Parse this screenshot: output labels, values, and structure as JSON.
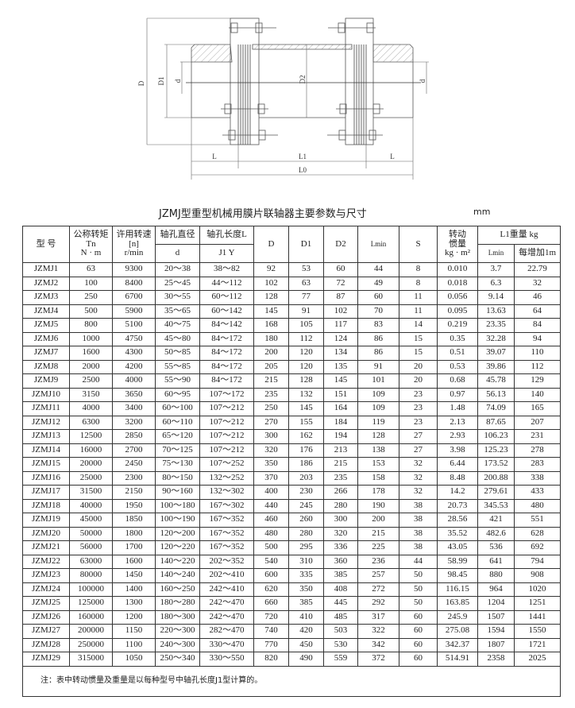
{
  "drawing": {
    "labels": {
      "D": "D",
      "D1": "D1",
      "D2": "D2",
      "d_left": "d",
      "d_right": "d",
      "L_left": "L",
      "L1": "L1",
      "L_right": "L",
      "L0": "L0"
    }
  },
  "title": "JZMJ型重型机械用膜片联轴器主要参数与尺寸",
  "unit": "mm",
  "table": {
    "headers": {
      "model": "型 号",
      "torque": [
        "公称转矩",
        "Tn",
        "N · m"
      ],
      "speed": [
        "许用转速",
        "[n]",
        "r/min"
      ],
      "bore_diameter": "轴孔直径",
      "bore_diameter_sub": "d",
      "bore_length": "轴孔长度L",
      "bore_length_sub": "J1  Y",
      "D": "D",
      "D1": "D1",
      "D2": "D2",
      "Lmin": "Lmin",
      "S": "S",
      "inertia": [
        "转动",
        "惯量",
        "kg · m²"
      ],
      "weight": "L1重量 kg",
      "weight_lmin": "Lmin",
      "weight_per_m": "每增加1m"
    },
    "rows": [
      [
        "JZMJ1",
        "63",
        "9300",
        "20～38",
        "38～82",
        "92",
        "53",
        "60",
        "44",
        "8",
        "0.010",
        "3.7",
        "22.79"
      ],
      [
        "JZMJ2",
        "100",
        "8400",
        "25～45",
        "44～112",
        "102",
        "63",
        "72",
        "49",
        "8",
        "0.018",
        "6.3",
        "32"
      ],
      [
        "JZMJ3",
        "250",
        "6700",
        "30～55",
        "60～112",
        "128",
        "77",
        "87",
        "60",
        "11",
        "0.056",
        "9.14",
        "46"
      ],
      [
        "JZMJ4",
        "500",
        "5900",
        "35～65",
        "60～142",
        "145",
        "91",
        "102",
        "70",
        "11",
        "0.095",
        "13.63",
        "64"
      ],
      [
        "JZMJ5",
        "800",
        "5100",
        "40～75",
        "84～142",
        "168",
        "105",
        "117",
        "83",
        "14",
        "0.219",
        "23.35",
        "84"
      ],
      [
        "JZMJ6",
        "1000",
        "4750",
        "45～80",
        "84～172",
        "180",
        "112",
        "124",
        "86",
        "15",
        "0.35",
        "32.28",
        "94"
      ],
      [
        "JZMJ7",
        "1600",
        "4300",
        "50～85",
        "84～172",
        "200",
        "120",
        "134",
        "86",
        "15",
        "0.51",
        "39.07",
        "110"
      ],
      [
        "JZMJ8",
        "2000",
        "4200",
        "55～85",
        "84～172",
        "205",
        "120",
        "135",
        "91",
        "20",
        "0.53",
        "39.86",
        "112"
      ],
      [
        "JZMJ9",
        "2500",
        "4000",
        "55～90",
        "84～172",
        "215",
        "128",
        "145",
        "101",
        "20",
        "0.68",
        "45.78",
        "129"
      ],
      [
        "JZMJ10",
        "3150",
        "3650",
        "60～95",
        "107～172",
        "235",
        "132",
        "151",
        "109",
        "23",
        "0.97",
        "56.13",
        "140"
      ],
      [
        "JZMJ11",
        "4000",
        "3400",
        "60～100",
        "107～212",
        "250",
        "145",
        "164",
        "109",
        "23",
        "1.48",
        "74.09",
        "165"
      ],
      [
        "JZMJ12",
        "6300",
        "3200",
        "60～110",
        "107～212",
        "270",
        "155",
        "184",
        "119",
        "23",
        "2.13",
        "87.65",
        "207"
      ],
      [
        "JZMJ13",
        "12500",
        "2850",
        "65～120",
        "107～212",
        "300",
        "162",
        "194",
        "128",
        "27",
        "2.93",
        "106.23",
        "231"
      ],
      [
        "JZMJ14",
        "16000",
        "2700",
        "70～125",
        "107～212",
        "320",
        "176",
        "213",
        "138",
        "27",
        "3.98",
        "125.23",
        "278"
      ],
      [
        "JZMJ15",
        "20000",
        "2450",
        "75～130",
        "107～252",
        "350",
        "186",
        "215",
        "153",
        "32",
        "6.44",
        "173.52",
        "283"
      ],
      [
        "JZMJ16",
        "25000",
        "2300",
        "80～150",
        "132～252",
        "370",
        "203",
        "235",
        "158",
        "32",
        "8.48",
        "200.88",
        "338"
      ],
      [
        "JZMJ17",
        "31500",
        "2150",
        "90～160",
        "132～302",
        "400",
        "230",
        "266",
        "178",
        "32",
        "14.2",
        "279.61",
        "433"
      ],
      [
        "JZMJ18",
        "40000",
        "1950",
        "100～180",
        "167～302",
        "440",
        "245",
        "280",
        "190",
        "38",
        "20.73",
        "345.53",
        "480"
      ],
      [
        "JZMJ19",
        "45000",
        "1850",
        "100～190",
        "167～352",
        "460",
        "260",
        "300",
        "200",
        "38",
        "28.56",
        "421",
        "551"
      ],
      [
        "JZMJ20",
        "50000",
        "1800",
        "120～200",
        "167～352",
        "480",
        "280",
        "320",
        "215",
        "38",
        "35.52",
        "482.6",
        "628"
      ],
      [
        "JZMJ21",
        "56000",
        "1700",
        "120～220",
        "167～352",
        "500",
        "295",
        "336",
        "225",
        "38",
        "43.05",
        "536",
        "692"
      ],
      [
        "JZMJ22",
        "63000",
        "1600",
        "140～220",
        "202～352",
        "540",
        "310",
        "360",
        "236",
        "44",
        "58.99",
        "641",
        "794"
      ],
      [
        "JZMJ23",
        "80000",
        "1450",
        "140～240",
        "202～410",
        "600",
        "335",
        "385",
        "257",
        "50",
        "98.45",
        "880",
        "908"
      ],
      [
        "JZMJ24",
        "100000",
        "1400",
        "160～250",
        "242～410",
        "620",
        "350",
        "408",
        "272",
        "50",
        "116.15",
        "964",
        "1020"
      ],
      [
        "JZMJ25",
        "125000",
        "1300",
        "180～280",
        "242～470",
        "660",
        "385",
        "445",
        "292",
        "50",
        "163.85",
        "1204",
        "1251"
      ],
      [
        "JZMJ26",
        "160000",
        "1200",
        "180～300",
        "242～470",
        "720",
        "410",
        "485",
        "317",
        "60",
        "245.9",
        "1507",
        "1441"
      ],
      [
        "JZMJ27",
        "200000",
        "1150",
        "220～300",
        "282～470",
        "740",
        "420",
        "503",
        "322",
        "60",
        "275.08",
        "1594",
        "1550"
      ],
      [
        "JZMJ28",
        "250000",
        "1100",
        "240～300",
        "330～470",
        "770",
        "450",
        "530",
        "342",
        "60",
        "342.37",
        "1807",
        "1721"
      ],
      [
        "JZMJ29",
        "315000",
        "1050",
        "250～340",
        "330～550",
        "820",
        "490",
        "559",
        "372",
        "60",
        "514.91",
        "2358",
        "2025"
      ]
    ],
    "note": "注：表中转动惯量及重量是以每种型号中轴孔长度J1型计算的。"
  }
}
